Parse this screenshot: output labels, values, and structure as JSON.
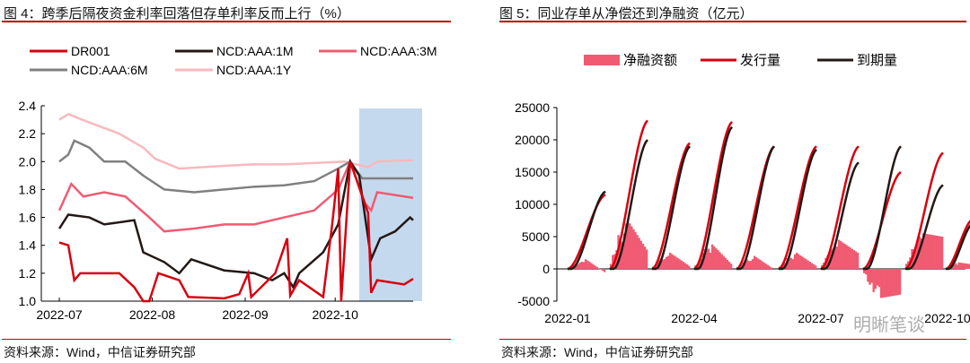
{
  "chart_data": [
    {
      "type": "line",
      "title": "图 4：跨季后隔夜资金利率回落但存单利率反而上行（%）",
      "x_unit": "days since 2022-07-01",
      "ylim": [
        1.0,
        2.4
      ],
      "yticks": [
        1.0,
        1.2,
        1.4,
        1.6,
        1.8,
        2.0,
        2.2,
        2.4
      ],
      "xticks": [
        {
          "label": "2022-07",
          "day": 0
        },
        {
          "label": "2022-08",
          "day": 31
        },
        {
          "label": "2022-09",
          "day": 62
        },
        {
          "label": "2022-10",
          "day": 92
        }
      ],
      "legend_placement": "top",
      "highlight": {
        "from_day": 100,
        "to_day": 118,
        "color": "#c5d9ee"
      },
      "series": [
        {
          "name": "DR001",
          "color": "#d7000f",
          "points": [
            [
              0,
              1.42
            ],
            [
              3,
              1.4
            ],
            [
              5,
              1.15
            ],
            [
              7,
              1.2
            ],
            [
              20,
              1.2
            ],
            [
              25,
              1.1
            ],
            [
              28,
              1.0
            ],
            [
              30,
              1.0
            ],
            [
              33,
              1.2
            ],
            [
              40,
              1.15
            ],
            [
              43,
              1.03
            ],
            [
              55,
              1.02
            ],
            [
              60,
              1.05
            ],
            [
              63,
              1.2
            ],
            [
              64,
              1.03
            ],
            [
              72,
              1.2
            ],
            [
              76,
              1.45
            ],
            [
              77,
              1.04
            ],
            [
              80,
              1.15
            ],
            [
              88,
              1.03
            ],
            [
              91,
              1.55
            ],
            [
              93,
              1.95
            ],
            [
              94,
              1.0
            ],
            [
              97,
              2.0
            ],
            [
              103,
              1.63
            ],
            [
              104,
              1.06
            ],
            [
              106,
              1.15
            ],
            [
              115,
              1.12
            ],
            [
              118,
              1.16
            ]
          ]
        },
        {
          "name": "NCD:AAA:1M",
          "color": "#231815",
          "points": [
            [
              0,
              1.52
            ],
            [
              3,
              1.62
            ],
            [
              10,
              1.6
            ],
            [
              15,
              1.55
            ],
            [
              25,
              1.58
            ],
            [
              28,
              1.35
            ],
            [
              35,
              1.28
            ],
            [
              40,
              1.2
            ],
            [
              44,
              1.3
            ],
            [
              55,
              1.22
            ],
            [
              65,
              1.2
            ],
            [
              71,
              1.15
            ],
            [
              75,
              1.2
            ],
            [
              78,
              1.1
            ],
            [
              80,
              1.2
            ],
            [
              88,
              1.35
            ],
            [
              93,
              1.55
            ],
            [
              97,
              2.0
            ],
            [
              100,
              1.9
            ],
            [
              104,
              1.3
            ],
            [
              107,
              1.45
            ],
            [
              112,
              1.5
            ],
            [
              117,
              1.6
            ],
            [
              118,
              1.58
            ]
          ]
        },
        {
          "name": "NCD:AAA:3M",
          "color": "#f05b72",
          "points": [
            [
              0,
              1.65
            ],
            [
              4,
              1.84
            ],
            [
              8,
              1.75
            ],
            [
              15,
              1.78
            ],
            [
              22,
              1.75
            ],
            [
              30,
              1.6
            ],
            [
              35,
              1.5
            ],
            [
              45,
              1.52
            ],
            [
              55,
              1.55
            ],
            [
              65,
              1.55
            ],
            [
              75,
              1.6
            ],
            [
              85,
              1.65
            ],
            [
              93,
              1.8
            ],
            [
              97,
              2.0
            ],
            [
              102,
              1.7
            ],
            [
              104,
              1.65
            ],
            [
              106,
              1.78
            ],
            [
              118,
              1.74
            ]
          ]
        },
        {
          "name": "NCD:AAA:6M",
          "color": "#808080",
          "points": [
            [
              0,
              2.0
            ],
            [
              3,
              2.05
            ],
            [
              5,
              2.15
            ],
            [
              10,
              2.1
            ],
            [
              15,
              2.0
            ],
            [
              22,
              2.0
            ],
            [
              28,
              1.9
            ],
            [
              35,
              1.8
            ],
            [
              45,
              1.78
            ],
            [
              55,
              1.8
            ],
            [
              65,
              1.82
            ],
            [
              75,
              1.83
            ],
            [
              85,
              1.86
            ],
            [
              93,
              1.95
            ],
            [
              97,
              2.0
            ],
            [
              101,
              1.88
            ],
            [
              118,
              1.88
            ]
          ]
        },
        {
          "name": "NCD:AAA:1Y",
          "color": "#f8b9bd",
          "points": [
            [
              0,
              2.3
            ],
            [
              3,
              2.34
            ],
            [
              10,
              2.28
            ],
            [
              20,
              2.2
            ],
            [
              28,
              2.1
            ],
            [
              32,
              2.02
            ],
            [
              40,
              1.95
            ],
            [
              55,
              1.97
            ],
            [
              65,
              1.98
            ],
            [
              75,
              1.98
            ],
            [
              85,
              1.99
            ],
            [
              95,
              2.0
            ],
            [
              103,
              1.96
            ],
            [
              106,
              2.0
            ],
            [
              118,
              2.01
            ]
          ]
        }
      ]
    },
    {
      "type": "bar+line",
      "title": "图 5：同业存单从净偿还到净融资（亿元）",
      "ylim": [
        -5000,
        25000
      ],
      "yticks": [
        -5000,
        0,
        5000,
        10000,
        15000,
        20000,
        25000
      ],
      "xticks": [
        {
          "label": "2022-01",
          "month": 0
        },
        {
          "label": "2022-04",
          "month": 3
        },
        {
          "label": "2022-07",
          "month": 6
        },
        {
          "label": "2022-10",
          "month": 9
        }
      ],
      "legend_placement": "top",
      "months": [
        "2022-01",
        "2022-02",
        "2022-03",
        "2022-04",
        "2022-05",
        "2022-06",
        "2022-07",
        "2022-08",
        "2022-09",
        "2022-10"
      ],
      "series": [
        {
          "name": "净融资额",
          "type": "bar",
          "color": "#f05b72",
          "month_end_cumulative": [
            -500,
            3000,
            500,
            800,
            0,
            500,
            2500,
            -4000,
            5000,
            700
          ],
          "month_peak": [
            1500,
            7500,
            2500,
            3800,
            2000,
            2500,
            4500,
            -4500,
            5500,
            1000
          ]
        },
        {
          "name": "发行量",
          "type": "line",
          "color": "#d7000f",
          "month_end_cumulative": [
            11500,
            23000,
            19500,
            22800,
            19000,
            19000,
            19000,
            15000,
            18000,
            7700
          ]
        },
        {
          "name": "到期量",
          "type": "line",
          "color": "#231815",
          "month_end_cumulative": [
            12000,
            20000,
            19000,
            22000,
            19000,
            18500,
            16500,
            19000,
            13000,
            7000
          ]
        }
      ]
    }
  ],
  "source_left": "资料来源：Wind，中信证券研究部",
  "source_right": "资料来源：Wind，中信证券研究部",
  "watermark": "明晰笔谈"
}
